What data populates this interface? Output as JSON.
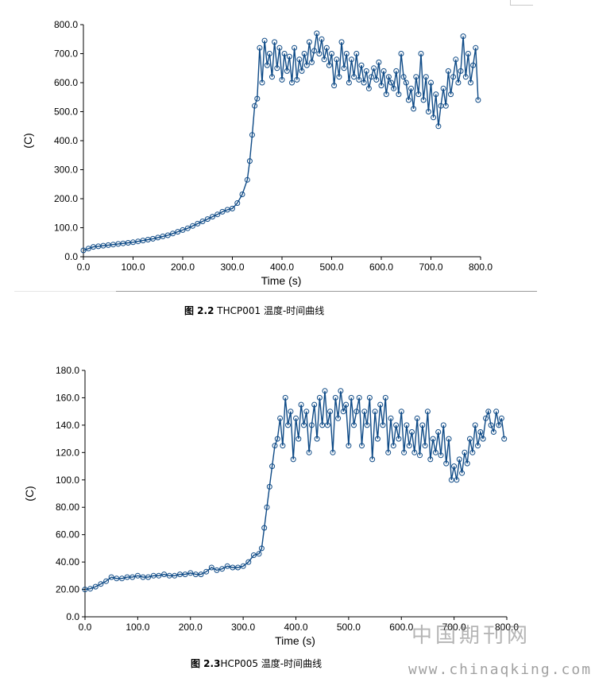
{
  "colors": {
    "series": "#0e4a86",
    "axis": "#000000"
  },
  "captions": [
    {
      "fig": "图 2.2",
      "text": " THCP001 温度-时间曲线"
    },
    {
      "fig": "图 2.3",
      "text": "HCP005 温度-时间曲线"
    }
  ],
  "watermark": {
    "cn": "中国期刊网",
    "url": "www.chinaqking.com"
  },
  "chart_data": [
    {
      "type": "line",
      "xlabel": "Time (s)",
      "ylabel": "(C)",
      "xlim": [
        0,
        800
      ],
      "ylim": [
        0,
        800
      ],
      "x_ticks": [
        "0.0",
        "100.0",
        "200.0",
        "300.0",
        "400.0",
        "500.0",
        "600.0",
        "700.0",
        "800.0"
      ],
      "y_ticks": [
        "0.0",
        "100.0",
        "200.0",
        "300.0",
        "400.0",
        "500.0",
        "600.0",
        "700.0",
        "800.0"
      ],
      "grid": false,
      "markers": "open-circle",
      "series": [
        {
          "x": [
            0,
            10,
            20,
            30,
            40,
            50,
            60,
            70,
            80,
            90,
            100,
            110,
            120,
            130,
            140,
            150,
            160,
            170,
            180,
            190,
            200,
            210,
            220,
            230,
            240,
            250,
            260,
            270,
            280,
            290,
            300,
            310,
            320,
            330,
            335,
            340,
            345,
            350,
            355,
            360,
            365,
            370,
            375,
            380,
            385,
            390,
            395,
            400,
            405,
            410,
            415,
            420,
            425,
            430,
            435,
            440,
            445,
            450,
            455,
            460,
            465,
            470,
            475,
            480,
            485,
            490,
            495,
            500,
            505,
            510,
            515,
            520,
            525,
            530,
            535,
            540,
            545,
            550,
            555,
            560,
            565,
            570,
            575,
            580,
            585,
            590,
            595,
            600,
            605,
            610,
            615,
            620,
            625,
            630,
            635,
            640,
            645,
            650,
            655,
            660,
            665,
            670,
            675,
            680,
            685,
            690,
            695,
            700,
            705,
            710,
            715,
            720,
            725,
            730,
            735,
            740,
            745,
            750,
            755,
            760,
            765,
            770,
            775,
            780,
            785,
            790,
            795
          ],
          "y": [
            22,
            28,
            34,
            36,
            38,
            40,
            42,
            44,
            46,
            48,
            50,
            53,
            56,
            59,
            62,
            66,
            70,
            74,
            80,
            86,
            92,
            98,
            106,
            114,
            122,
            130,
            138,
            146,
            155,
            162,
            166,
            185,
            215,
            265,
            330,
            420,
            520,
            545,
            720,
            600,
            745,
            660,
            700,
            620,
            740,
            650,
            720,
            610,
            700,
            640,
            690,
            600,
            720,
            610,
            680,
            640,
            700,
            660,
            740,
            670,
            710,
            770,
            700,
            750,
            680,
            720,
            660,
            700,
            590,
            680,
            620,
            740,
            650,
            700,
            600,
            680,
            620,
            700,
            610,
            660,
            600,
            640,
            580,
            620,
            650,
            610,
            670,
            590,
            640,
            560,
            620,
            600,
            580,
            640,
            560,
            700,
            620,
            600,
            540,
            580,
            510,
            620,
            560,
            700,
            540,
            620,
            500,
            600,
            480,
            560,
            450,
            520,
            580,
            520,
            640,
            560,
            620,
            680,
            600,
            640,
            760,
            620,
            700,
            600,
            660,
            720,
            540
          ]
        }
      ]
    },
    {
      "type": "line",
      "xlabel": "Time (s)",
      "ylabel": "(C)",
      "xlim": [
        0,
        800
      ],
      "ylim": [
        0,
        180
      ],
      "x_ticks": [
        "0.0",
        "100.0",
        "200.0",
        "300.0",
        "400.0",
        "500.0",
        "600.0",
        "700.0",
        "800.0"
      ],
      "y_ticks": [
        "0.0",
        "20.00",
        "40.00",
        "60.00",
        "80.00",
        "100.0",
        "120.0",
        "140.0",
        "160.0",
        "180.0"
      ],
      "grid": false,
      "markers": "open-circle",
      "series": [
        {
          "x": [
            0,
            10,
            20,
            30,
            40,
            50,
            60,
            70,
            80,
            90,
            100,
            110,
            120,
            130,
            140,
            150,
            160,
            170,
            180,
            190,
            200,
            210,
            220,
            230,
            240,
            250,
            260,
            270,
            280,
            290,
            300,
            310,
            320,
            330,
            335,
            340,
            345,
            350,
            355,
            360,
            365,
            370,
            375,
            380,
            385,
            390,
            395,
            400,
            405,
            410,
            415,
            420,
            425,
            430,
            435,
            440,
            445,
            450,
            455,
            460,
            465,
            470,
            475,
            480,
            485,
            490,
            495,
            500,
            505,
            510,
            515,
            520,
            525,
            530,
            535,
            540,
            545,
            550,
            555,
            560,
            565,
            570,
            575,
            580,
            585,
            590,
            595,
            600,
            605,
            610,
            615,
            620,
            625,
            630,
            635,
            640,
            645,
            650,
            655,
            660,
            665,
            670,
            675,
            680,
            685,
            690,
            695,
            700,
            705,
            710,
            715,
            720,
            725,
            730,
            735,
            740,
            745,
            750,
            755,
            760,
            765,
            770,
            775,
            780,
            785,
            790,
            795
          ],
          "y": [
            20,
            20.5,
            22,
            24,
            26,
            29,
            28,
            28,
            29,
            29,
            30,
            29,
            29,
            30,
            30,
            31,
            30,
            30,
            31,
            31,
            32,
            31,
            31,
            33,
            36,
            34,
            35,
            37,
            36,
            36,
            37,
            40,
            45,
            46,
            50,
            65,
            80,
            95,
            110,
            125,
            130,
            145,
            125,
            160,
            140,
            150,
            115,
            145,
            130,
            155,
            140,
            150,
            120,
            140,
            155,
            130,
            160,
            140,
            165,
            140,
            150,
            120,
            160,
            145,
            165,
            150,
            155,
            125,
            160,
            140,
            150,
            160,
            125,
            150,
            140,
            160,
            115,
            150,
            130,
            155,
            140,
            160,
            120,
            145,
            125,
            140,
            130,
            150,
            120,
            140,
            125,
            135,
            120,
            145,
            118,
            140,
            125,
            150,
            115,
            130,
            120,
            135,
            118,
            140,
            112,
            130,
            100,
            110,
            100,
            115,
            105,
            120,
            112,
            130,
            120,
            140,
            125,
            135,
            130,
            145,
            150,
            140,
            135,
            150,
            140,
            145,
            130
          ]
        }
      ]
    }
  ]
}
